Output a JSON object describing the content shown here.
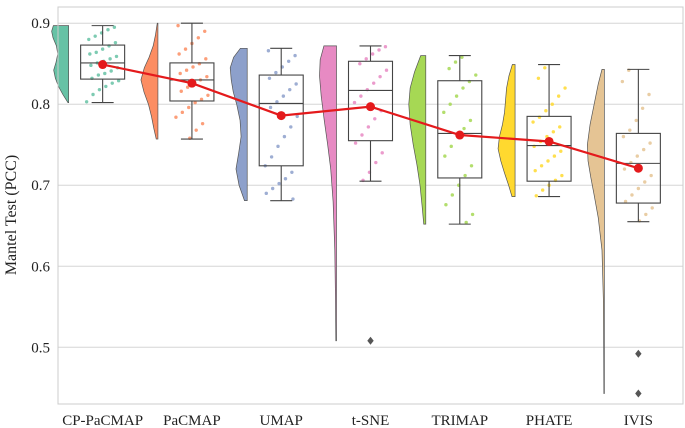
{
  "chart_data": {
    "type": "raincloud-box",
    "title": "",
    "xlabel": "",
    "ylabel": "Mantel Test (PCC)",
    "ylim": [
      0.43,
      0.92
    ],
    "yticks": [
      0.5,
      0.6,
      0.7,
      0.8,
      0.9
    ],
    "grid": "horizontal",
    "legend": "none",
    "mean_line_color": "#e41a1c",
    "categories": [
      "CP-PaCMAP",
      "PaCMAP",
      "UMAP",
      "t-SNE",
      "TRIMAP",
      "PHATE",
      "IVIS"
    ],
    "colors": [
      "#66c2a5",
      "#fc8d62",
      "#8da0cb",
      "#e78ac3",
      "#a6d854",
      "#ffd92f",
      "#e5c494"
    ],
    "means": [
      0.849,
      0.826,
      0.786,
      0.797,
      0.762,
      0.754,
      0.721
    ],
    "boxes": [
      {
        "whisker_low": 0.802,
        "q1": 0.831,
        "median": 0.851,
        "q3": 0.873,
        "whisker_high": 0.897,
        "outliers": []
      },
      {
        "whisker_low": 0.757,
        "q1": 0.804,
        "median": 0.83,
        "q3": 0.851,
        "whisker_high": 0.9,
        "outliers": []
      },
      {
        "whisker_low": 0.681,
        "q1": 0.724,
        "median": 0.801,
        "q3": 0.836,
        "whisker_high": 0.869,
        "outliers": []
      },
      {
        "whisker_low": 0.705,
        "q1": 0.755,
        "median": 0.817,
        "q3": 0.853,
        "whisker_high": 0.872,
        "outliers": [
          0.508
        ]
      },
      {
        "whisker_low": 0.652,
        "q1": 0.709,
        "median": 0.764,
        "q3": 0.829,
        "whisker_high": 0.86,
        "outliers": []
      },
      {
        "whisker_low": 0.686,
        "q1": 0.705,
        "median": 0.749,
        "q3": 0.785,
        "whisker_high": 0.849,
        "outliers": []
      },
      {
        "whisker_low": 0.655,
        "q1": 0.678,
        "median": 0.727,
        "q3": 0.764,
        "whisker_high": 0.843,
        "outliers": [
          0.492,
          0.443
        ]
      }
    ],
    "violins": [
      {
        "ymin": 0.802,
        "ymax": 0.897,
        "density": [
          [
            0.802,
            0.04
          ],
          [
            0.812,
            0.34
          ],
          [
            0.822,
            0.6
          ],
          [
            0.832,
            0.78
          ],
          [
            0.842,
            0.88
          ],
          [
            0.852,
            0.74
          ],
          [
            0.862,
            0.64
          ],
          [
            0.872,
            0.72
          ],
          [
            0.882,
            0.92
          ],
          [
            0.89,
            1.0
          ],
          [
            0.897,
            0.9
          ]
        ]
      },
      {
        "ymin": 0.757,
        "ymax": 0.9,
        "density": [
          [
            0.757,
            0.1
          ],
          [
            0.77,
            0.24
          ],
          [
            0.785,
            0.38
          ],
          [
            0.8,
            0.56
          ],
          [
            0.815,
            0.82
          ],
          [
            0.83,
            1.0
          ],
          [
            0.845,
            0.8
          ],
          [
            0.858,
            0.52
          ],
          [
            0.872,
            0.28
          ],
          [
            0.886,
            0.14
          ],
          [
            0.9,
            0.04
          ]
        ]
      },
      {
        "ymin": 0.681,
        "ymax": 0.869,
        "density": [
          [
            0.681,
            0.16
          ],
          [
            0.7,
            0.48
          ],
          [
            0.72,
            0.66
          ],
          [
            0.74,
            0.5
          ],
          [
            0.76,
            0.36
          ],
          [
            0.78,
            0.42
          ],
          [
            0.8,
            0.62
          ],
          [
            0.815,
            0.82
          ],
          [
            0.83,
            0.94
          ],
          [
            0.845,
            1.0
          ],
          [
            0.858,
            0.8
          ],
          [
            0.869,
            0.4
          ]
        ]
      },
      {
        "ymin": 0.508,
        "ymax": 0.872,
        "density": [
          [
            0.508,
            0.04
          ],
          [
            0.56,
            0.06
          ],
          [
            0.62,
            0.1
          ],
          [
            0.68,
            0.2
          ],
          [
            0.72,
            0.34
          ],
          [
            0.75,
            0.52
          ],
          [
            0.78,
            0.72
          ],
          [
            0.81,
            0.9
          ],
          [
            0.835,
            1.0
          ],
          [
            0.855,
            0.96
          ],
          [
            0.872,
            0.74
          ]
        ]
      },
      {
        "ymin": 0.652,
        "ymax": 0.86,
        "density": [
          [
            0.652,
            0.12
          ],
          [
            0.675,
            0.22
          ],
          [
            0.7,
            0.34
          ],
          [
            0.725,
            0.52
          ],
          [
            0.75,
            0.74
          ],
          [
            0.775,
            0.92
          ],
          [
            0.8,
            1.0
          ],
          [
            0.82,
            0.92
          ],
          [
            0.84,
            0.66
          ],
          [
            0.86,
            0.3
          ]
        ]
      },
      {
        "ymin": 0.686,
        "ymax": 0.849,
        "density": [
          [
            0.686,
            0.18
          ],
          [
            0.7,
            0.38
          ],
          [
            0.715,
            0.62
          ],
          [
            0.73,
            0.84
          ],
          [
            0.745,
            1.0
          ],
          [
            0.76,
            0.92
          ],
          [
            0.775,
            0.74
          ],
          [
            0.79,
            0.62
          ],
          [
            0.805,
            0.56
          ],
          [
            0.82,
            0.5
          ],
          [
            0.835,
            0.36
          ],
          [
            0.849,
            0.16
          ]
        ]
      },
      {
        "ymin": 0.443,
        "ymax": 0.843,
        "density": [
          [
            0.443,
            0.03
          ],
          [
            0.5,
            0.04
          ],
          [
            0.56,
            0.06
          ],
          [
            0.62,
            0.14
          ],
          [
            0.66,
            0.36
          ],
          [
            0.69,
            0.62
          ],
          [
            0.71,
            0.8
          ],
          [
            0.73,
            0.96
          ],
          [
            0.75,
            1.0
          ],
          [
            0.775,
            0.84
          ],
          [
            0.8,
            0.6
          ],
          [
            0.825,
            0.36
          ],
          [
            0.843,
            0.14
          ]
        ]
      }
    ],
    "points": [
      [
        0.803,
        0.812,
        0.818,
        0.822,
        0.826,
        0.829,
        0.832,
        0.836,
        0.838,
        0.841,
        0.845,
        0.848,
        0.851,
        0.853,
        0.856,
        0.859,
        0.862,
        0.864,
        0.868,
        0.872,
        0.876,
        0.88,
        0.884,
        0.888,
        0.892,
        0.895
      ],
      [
        0.758,
        0.768,
        0.776,
        0.784,
        0.79,
        0.796,
        0.802,
        0.806,
        0.811,
        0.816,
        0.821,
        0.826,
        0.83,
        0.834,
        0.838,
        0.842,
        0.846,
        0.85,
        0.856,
        0.862,
        0.868,
        0.875,
        0.882,
        0.89,
        0.897
      ],
      [
        0.683,
        0.69,
        0.696,
        0.702,
        0.708,
        0.716,
        0.724,
        0.735,
        0.748,
        0.76,
        0.772,
        0.785,
        0.796,
        0.803,
        0.81,
        0.818,
        0.825,
        0.832,
        0.839,
        0.846,
        0.853,
        0.86,
        0.866
      ],
      [
        0.706,
        0.716,
        0.728,
        0.74,
        0.752,
        0.762,
        0.772,
        0.782,
        0.792,
        0.802,
        0.81,
        0.818,
        0.826,
        0.834,
        0.842,
        0.85,
        0.856,
        0.862,
        0.867,
        0.871
      ],
      [
        0.654,
        0.664,
        0.676,
        0.688,
        0.7,
        0.712,
        0.724,
        0.736,
        0.748,
        0.76,
        0.77,
        0.78,
        0.79,
        0.8,
        0.81,
        0.82,
        0.828,
        0.836,
        0.844,
        0.852,
        0.858
      ],
      [
        0.687,
        0.694,
        0.7,
        0.706,
        0.712,
        0.718,
        0.724,
        0.73,
        0.736,
        0.742,
        0.748,
        0.754,
        0.76,
        0.766,
        0.772,
        0.778,
        0.784,
        0.792,
        0.8,
        0.81,
        0.82,
        0.832,
        0.845
      ],
      [
        0.656,
        0.664,
        0.672,
        0.68,
        0.688,
        0.696,
        0.704,
        0.712,
        0.72,
        0.728,
        0.736,
        0.744,
        0.752,
        0.76,
        0.768,
        0.78,
        0.795,
        0.812,
        0.828,
        0.842
      ]
    ]
  }
}
